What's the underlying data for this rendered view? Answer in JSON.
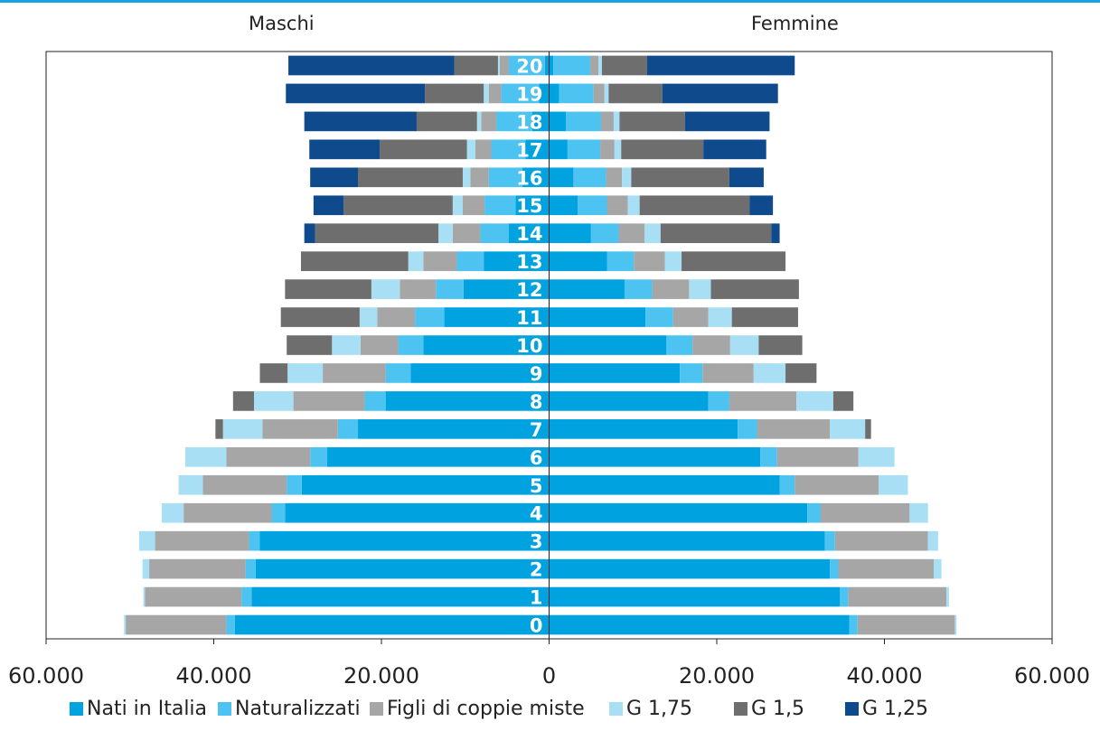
{
  "chart_data": {
    "type": "bar",
    "orientation": "horizontal-population-pyramid",
    "categories": [
      "0",
      "1",
      "2",
      "3",
      "4",
      "5",
      "6",
      "7",
      "8",
      "9",
      "10",
      "11",
      "12",
      "13",
      "14",
      "15",
      "16",
      "17",
      "18",
      "19",
      "20"
    ],
    "left_title": "Maschi",
    "right_title": "Femmine",
    "xlim": [
      -60000,
      60000
    ],
    "x_tick_values": [
      -60000,
      -40000,
      -20000,
      0,
      20000,
      40000,
      60000
    ],
    "x_tick_labels": [
      "60.000",
      "40.000",
      "20.000",
      "0",
      "20.000",
      "40.000",
      "60.000"
    ],
    "grid": false,
    "legend_position": "bottom",
    "series": [
      {
        "name": "Nati in Italia",
        "color": "#00a3e0",
        "maschi": [
          37500,
          35500,
          35000,
          34500,
          31500,
          29500,
          26500,
          22800,
          19500,
          16500,
          15000,
          12500,
          10200,
          7800,
          4800,
          4000,
          3200,
          2800,
          2000,
          1200,
          500
        ],
        "femmine": [
          35800,
          34700,
          33500,
          32900,
          30800,
          27500,
          25200,
          22500,
          19000,
          15600,
          14000,
          11500,
          9000,
          6900,
          5000,
          3400,
          2900,
          2200,
          2000,
          1200,
          500
        ]
      },
      {
        "name": "Naturalizzati",
        "color": "#4cc3f0",
        "maschi": [
          1000,
          1200,
          1200,
          1300,
          1600,
          1800,
          2000,
          2400,
          2500,
          3000,
          3000,
          3500,
          3300,
          3200,
          3400,
          3700,
          4000,
          4100,
          4300,
          4500,
          4300
        ],
        "femmine": [
          1000,
          1000,
          1000,
          1200,
          1600,
          1800,
          2000,
          2300,
          2500,
          2700,
          3100,
          3300,
          3300,
          3200,
          3300,
          3500,
          3900,
          3900,
          4200,
          4100,
          4400
        ]
      },
      {
        "name": "Figli di coppie miste",
        "color": "#a6a6a6",
        "maschi": [
          12000,
          11500,
          11500,
          11200,
          10500,
          10000,
          10000,
          9000,
          8500,
          7500,
          4500,
          4500,
          4300,
          4000,
          3300,
          2600,
          2200,
          1900,
          1800,
          1500,
          1100
        ],
        "femmine": [
          11600,
          11700,
          11400,
          11100,
          10600,
          10000,
          9700,
          8700,
          8000,
          6100,
          4500,
          4200,
          4400,
          3700,
          3100,
          2500,
          1900,
          1700,
          1500,
          1300,
          1000
        ]
      },
      {
        "name": "G 1,75",
        "color": "#a8dff5",
        "maschi": [
          200,
          200,
          800,
          1900,
          2600,
          2900,
          4900,
          4700,
          4700,
          4200,
          3400,
          2100,
          3400,
          1800,
          1700,
          1200,
          900,
          1000,
          500,
          600,
          200
        ],
        "femmine": [
          200,
          300,
          900,
          1200,
          2200,
          3500,
          4300,
          4200,
          4400,
          3800,
          3400,
          2800,
          2600,
          2000,
          1900,
          1400,
          1100,
          800,
          700,
          500,
          400
        ]
      },
      {
        "name": "G 1,5",
        "color": "#6e6e6e",
        "maschi": [
          0,
          0,
          0,
          0,
          0,
          0,
          0,
          900,
          2500,
          3300,
          5400,
          9400,
          10300,
          12800,
          14700,
          13000,
          12500,
          10400,
          7200,
          7000,
          5200
        ],
        "femmine": [
          0,
          0,
          0,
          0,
          0,
          0,
          0,
          700,
          2400,
          3700,
          5200,
          7900,
          10500,
          12400,
          13200,
          13100,
          11700,
          9800,
          7800,
          6400,
          5400
        ]
      },
      {
        "name": "G 1,25",
        "color": "#0f4a8c",
        "maschi": [
          0,
          0,
          0,
          0,
          0,
          0,
          0,
          0,
          0,
          0,
          0,
          0,
          0,
          0,
          1300,
          3600,
          5700,
          8400,
          13400,
          16600,
          19800
        ],
        "femmine": [
          0,
          0,
          0,
          0,
          0,
          0,
          0,
          0,
          0,
          0,
          0,
          0,
          0,
          0,
          1000,
          2800,
          4100,
          7500,
          10100,
          13800,
          17600
        ]
      }
    ]
  }
}
